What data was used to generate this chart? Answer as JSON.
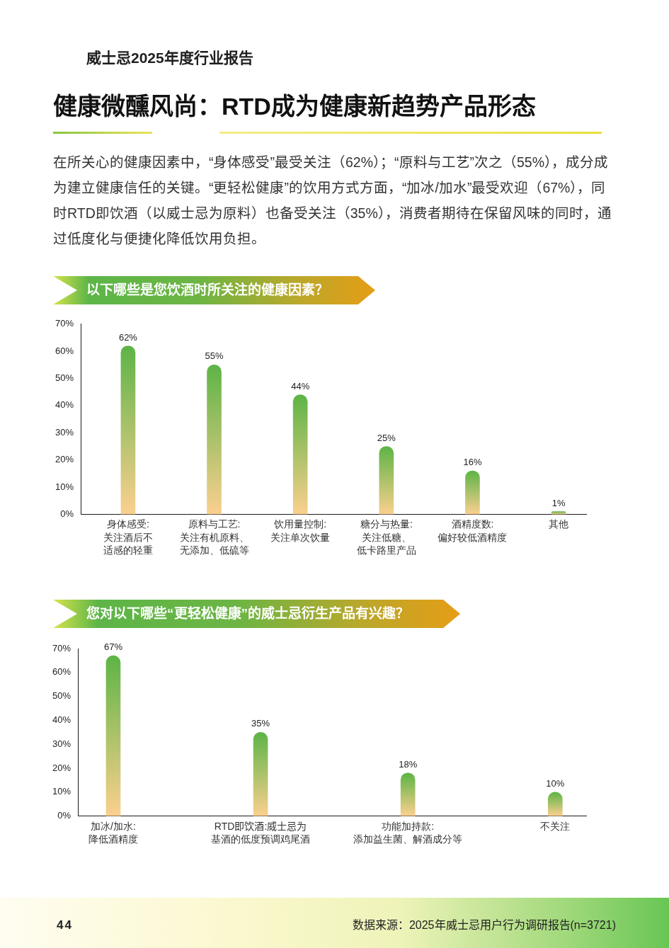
{
  "chart_data": [
    {
      "type": "other",
      "subtitle": "威士忌2025年度行业报告",
      "title": "健康微醺风尚：RTD成为健康新趋势产品形态",
      "annotations": [
        "在所关心的健康因素中，“身体感受”最受关注（62%）；“原料与工艺”次之（55%），成分成为建立健康信任的关键。“更轻松健康”的饮用方式方面，“加冰/加水”最受欢迎（67%），同时RTD即饮酒（以威士忌为原料）也备受关注（35%），消费者期待在保留风味的同时，通过低度化与便捷化降低饮用负担。"
      ]
    },
    {
      "type": "bar",
      "title": "以下哪些是您饮酒时所关注的健康因素？",
      "categories": [
        "身体感受:\n关注酒后不适感的轻重",
        "原料与工艺:\n关注有机原料、无添加、低硫等",
        "饮用量控制:\n关注单次饮量",
        "糖分与热量:\n关注低糖、低卡路里产品",
        "酒精度数:\n偏好较低酒精度",
        "其他"
      ],
      "values": [
        62,
        55,
        44,
        25,
        16,
        1
      ],
      "value_labels": [
        "62%",
        "55%",
        "44%",
        "25%",
        "16%",
        "1%"
      ],
      "color": "#5db446",
      "ylim": [
        0,
        70
      ],
      "yticks": [
        {
          "value": 0,
          "label": "0%"
        },
        {
          "value": 10,
          "label": "10%"
        },
        {
          "value": 20,
          "label": "20%"
        },
        {
          "value": 30,
          "label": "30%"
        },
        {
          "value": 40,
          "label": "40%"
        },
        {
          "value": 50,
          "label": "50%"
        },
        {
          "value": 60,
          "label": "60%"
        },
        {
          "value": 70,
          "label": "70%"
        }
      ]
    },
    {
      "type": "bar",
      "title": "您对以下哪些“更轻松健康”的威士忌衍生产品有兴趣？",
      "categories": [
        "加冰/加水:\n降低酒精度",
        "RTD即饮酒:威士忌为基酒的低度预调鸡尾酒",
        "功能加持款:\n添加益生菌、解酒成分等",
        "不关注"
      ],
      "values": [
        67,
        35,
        18,
        10
      ],
      "value_labels": [
        "67%",
        "35%",
        "18%",
        "10%"
      ],
      "color": "#5db446",
      "ylim": [
        0,
        70
      ],
      "yticks": [
        {
          "value": 0,
          "label": "0%"
        },
        {
          "value": 10,
          "label": "10%"
        },
        {
          "value": 20,
          "label": "20%"
        },
        {
          "value": 30,
          "label": "30%"
        },
        {
          "value": 40,
          "label": "40%"
        },
        {
          "value": 50,
          "label": "50%"
        },
        {
          "value": 60,
          "label": "60%"
        },
        {
          "value": 70,
          "label": "70%"
        }
      ]
    },
    {
      "type": "other",
      "annotations": [
        "44",
        "数据来源：2025年威士忌用户行为调研报告(n=3721)"
      ]
    }
  ]
}
